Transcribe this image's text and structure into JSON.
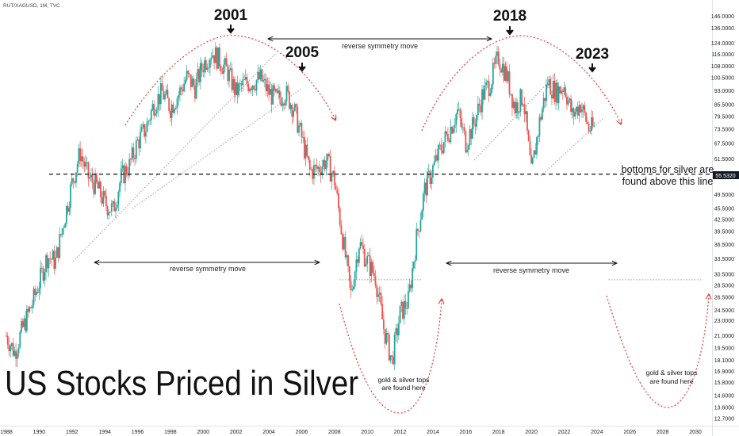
{
  "symbol": "RUT/XAGUSD, 1M, TVC",
  "title": "US Stocks Priced in Silver",
  "last_value": "55.5320",
  "colors": {
    "up": "#26a69a",
    "down": "#ef5350",
    "annotation": "#e53935",
    "text": "#111111"
  },
  "annotations": {
    "years": [
      "2001",
      "2005",
      "2018",
      "2023"
    ],
    "reverse_symmetry_top": "reverse symmetry move",
    "reverse_symmetry_left": "reverse symmetry move",
    "reverse_symmetry_right": "reverse symmetry move",
    "bottoms_line1": "bottoms for silver are",
    "bottoms_line2": "found above this line",
    "tops_left_line1": "gold & silver tops",
    "tops_left_line2": "are found here",
    "tops_right_line1": "gold & silver tops",
    "tops_right_line2": "are found here"
  },
  "chart_data": {
    "type": "candlestick",
    "y_scale": "log",
    "ylim": [
      12.7,
      150
    ],
    "xlim": [
      1988,
      2031
    ],
    "y_ticks": [
      "146.0000",
      "136.0000",
      "124.0000",
      "116.0000",
      "108.0000",
      "100.5000",
      "93.0000",
      "85.5000",
      "79.5000",
      "73.5000",
      "67.5000",
      "61.5000",
      "55.5320",
      "49.5000",
      "45.5000",
      "42.5000",
      "39.5000",
      "36.5000",
      "33.5000",
      "30.5000",
      "28.5000",
      "26.5000",
      "24.5000",
      "23.0000",
      "21.0000",
      "19.5000",
      "18.1000",
      "16.9000",
      "15.8000",
      "14.6000",
      "13.6000",
      "12.7000"
    ],
    "x_ticks": [
      "1988",
      "1990",
      "1992",
      "1994",
      "1996",
      "1998",
      "2000",
      "2002",
      "2004",
      "2006",
      "2008",
      "2010",
      "2012",
      "2014",
      "2016",
      "2018",
      "2020",
      "2022",
      "2024",
      "2026",
      "2028",
      "2030"
    ],
    "support_level": 56,
    "resistance_levels": [
      {
        "from": 2008.3,
        "to": 2013.3,
        "value": 29.5
      },
      {
        "from": 2024.7,
        "to": 2030.4,
        "value": 29.5
      }
    ],
    "series": [
      {
        "x": [
          1988.0,
          1988.5,
          1989.0,
          1989.5,
          1990.0,
          1990.5,
          1991.0,
          1991.5,
          1992.0,
          1992.5,
          1993.0,
          1993.5,
          1994.0,
          1994.5,
          1995.0,
          1995.5,
          1996.0,
          1996.5,
          1997.0,
          1997.5,
          1998.0,
          1998.5,
          1999.0,
          1999.5,
          2000.0,
          2000.5,
          2001.0,
          2001.5,
          2002.0,
          2002.5,
          2003.0,
          2003.5,
          2004.0,
          2004.5,
          2005.0,
          2005.5,
          2006.0,
          2006.5,
          2007.0,
          2007.5,
          2008.0,
          2008.5,
          2009.0,
          2009.5,
          2010.0,
          2010.5,
          2011.0,
          2011.5,
          2012.0,
          2012.5,
          2013.0,
          2013.5,
          2014.0,
          2014.5,
          2015.0,
          2015.5,
          2016.0,
          2016.5,
          2017.0,
          2017.5,
          2018.0,
          2018.5,
          2019.0,
          2019.5,
          2020.0,
          2020.5,
          2021.0,
          2021.5,
          2022.0,
          2022.5,
          2023.0,
          2023.5
        ],
        "y": [
          21,
          19,
          22,
          25,
          29,
          34,
          33,
          42,
          53,
          64,
          55,
          52,
          47,
          45,
          55,
          59,
          68,
          74,
          86,
          92,
          84,
          91,
          101,
          95,
          109,
          118,
          112,
          104,
          92,
          97,
          98,
          100,
          92,
          88,
          92,
          84,
          70,
          57,
          58,
          61,
          54,
          38,
          27,
          37,
          33,
          30,
          22,
          18,
          24,
          26,
          38,
          51,
          58,
          66,
          73,
          82,
          68,
          76,
          90,
          98,
          114,
          102,
          84,
          90,
          56,
          77,
          98,
          92,
          96,
          80,
          86,
          74
        ]
      }
    ]
  }
}
